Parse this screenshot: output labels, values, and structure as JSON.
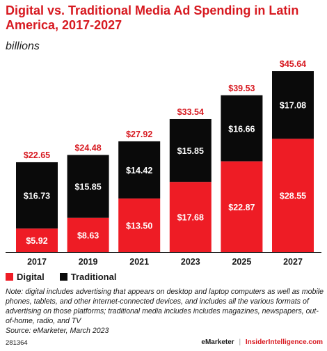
{
  "title": "Digital vs. Traditional Media Ad Spending in Latin America, 2017-2027",
  "subtitle": "billions",
  "legend": {
    "digital": "Digital",
    "traditional": "Traditional"
  },
  "colors": {
    "digital": "#ee1c25",
    "traditional": "#0a0a0a",
    "total_label": "#d71920",
    "bar_label": "#ffffff"
  },
  "note": "Note: digital includes advertising that appears on desktop and laptop computers as well as mobile phones, tablets, and other internet-connected devices, and includes all the various formats of advertising on those platforms; traditional media includes includes magazines, newspapers, out-of-home, radio, and TV",
  "source": "Source: eMarketer, March 2023",
  "footer": {
    "id": "281364",
    "brand_left": "eMarketer",
    "separator": "|",
    "brand_right": "InsiderIntelligence.com"
  },
  "chart_data": {
    "type": "bar",
    "stacked": true,
    "categories": [
      "2017",
      "2019",
      "2021",
      "2023",
      "2025",
      "2027"
    ],
    "series": [
      {
        "name": "Digital",
        "values": [
          5.92,
          8.63,
          13.5,
          17.68,
          22.87,
          28.55
        ],
        "labels": [
          "$5.92",
          "$8.63",
          "$13.50",
          "$17.68",
          "$22.87",
          "$28.55"
        ]
      },
      {
        "name": "Traditional",
        "values": [
          16.73,
          15.85,
          14.42,
          15.85,
          16.66,
          17.08
        ],
        "labels": [
          "$16.73",
          "$15.85",
          "$14.42",
          "$15.85",
          "$16.66",
          "$17.08"
        ]
      }
    ],
    "totals": [
      22.65,
      24.48,
      27.92,
      33.54,
      39.53,
      45.64
    ],
    "total_labels": [
      "$22.65",
      "$24.48",
      "$27.92",
      "$33.54",
      "$39.53",
      "$45.64"
    ],
    "ylim": [
      0,
      45.64
    ],
    "grid": false,
    "legend_position": "bottom-left"
  }
}
